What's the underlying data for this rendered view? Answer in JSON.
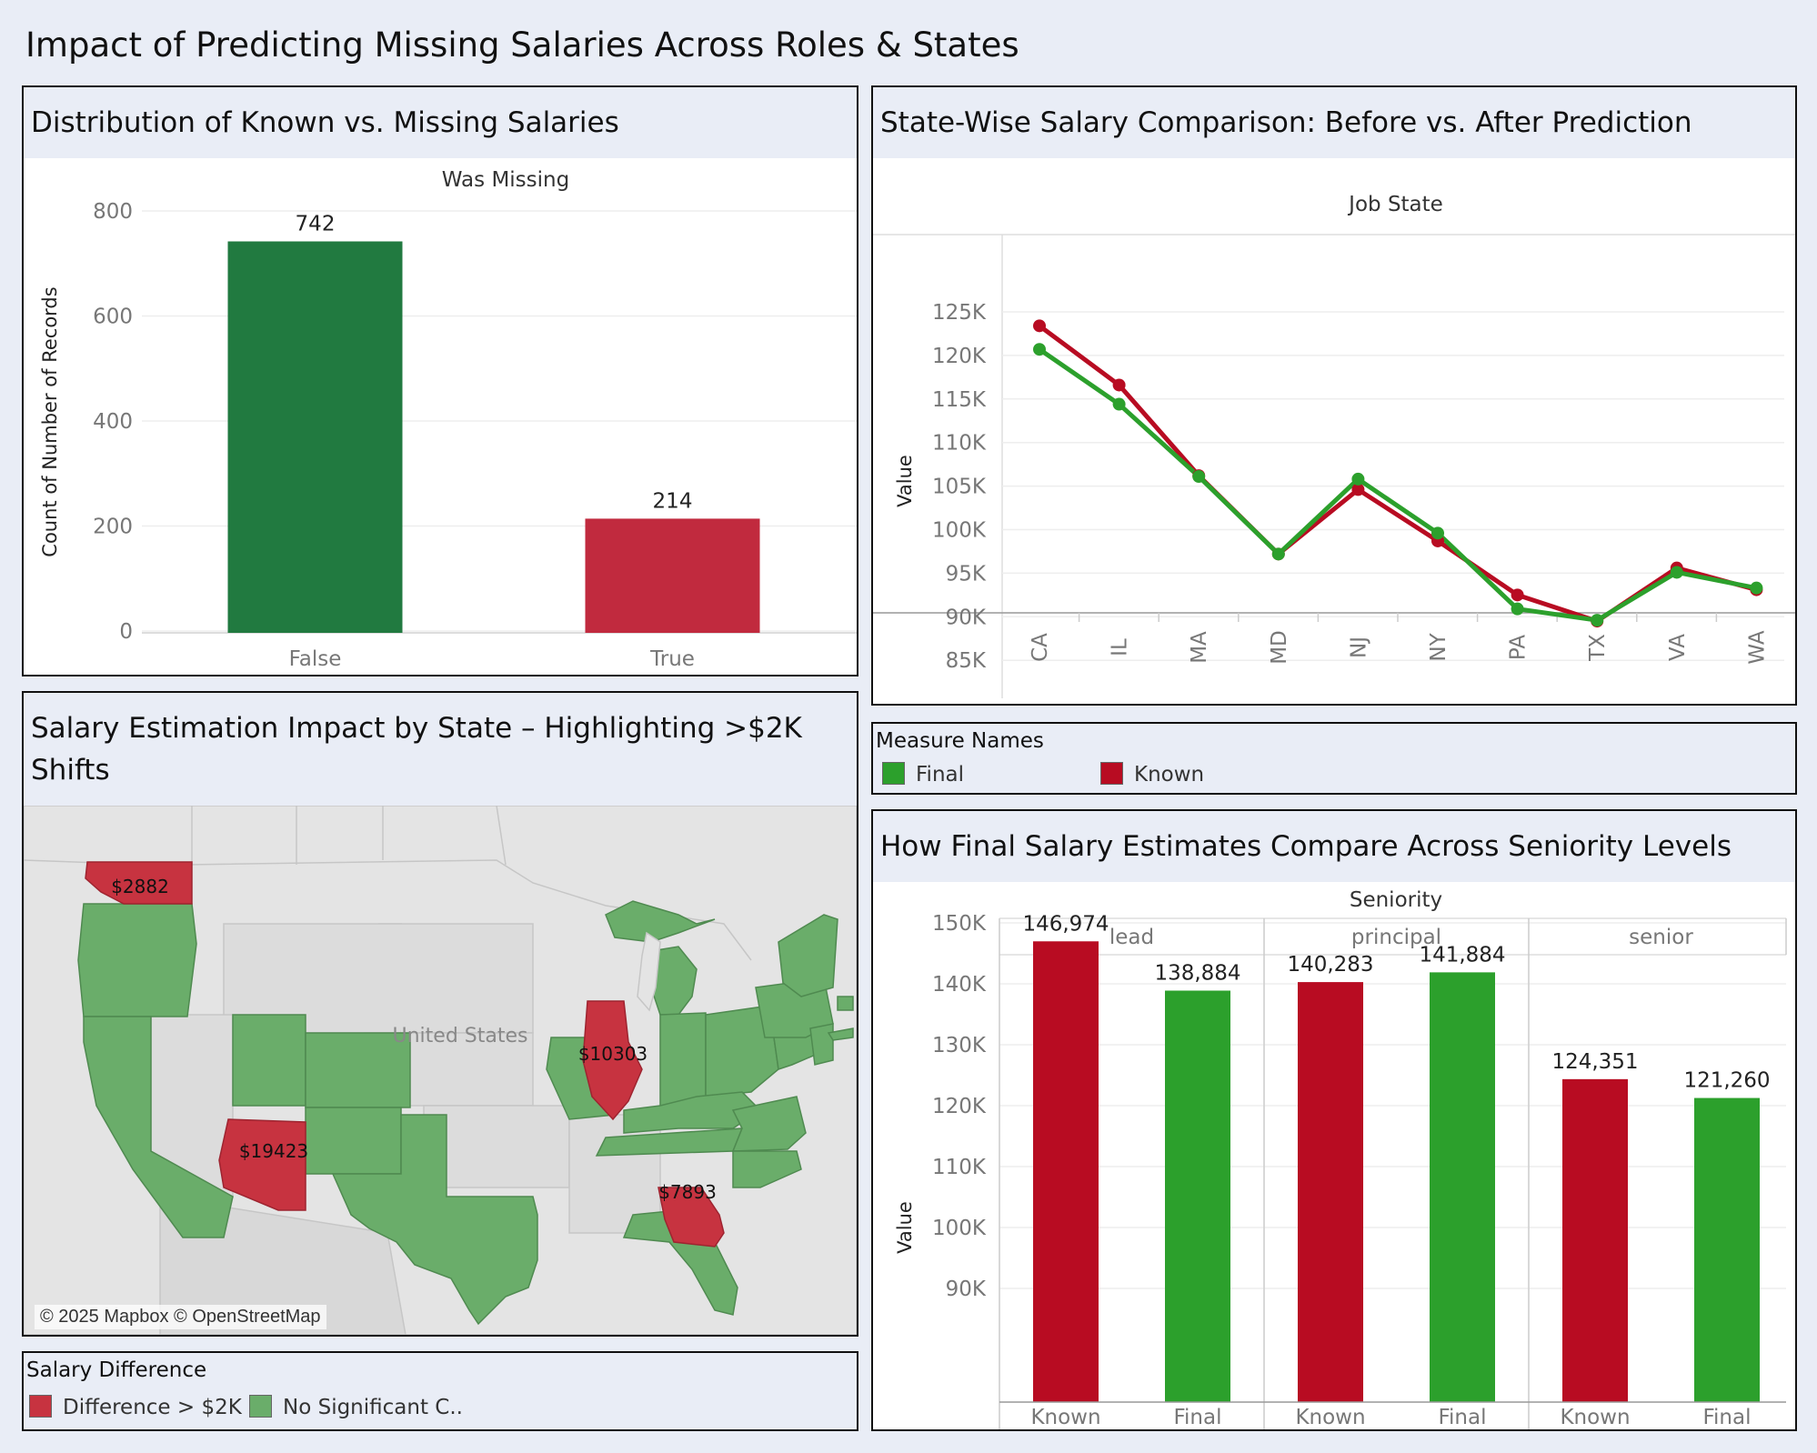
{
  "dashboard": {
    "title": "Impact of Predicting Missing Salaries Across Roles & States"
  },
  "chart_data": [
    {
      "id": "missing-distribution",
      "type": "bar",
      "title": "Distribution of Known vs. Missing Salaries",
      "header": "Was Missing",
      "categories": [
        "False",
        "True"
      ],
      "values": [
        742,
        214
      ],
      "value_labels": [
        "742",
        "214"
      ],
      "colors": [
        "#217a40",
        "#c12a3e"
      ],
      "ylabel": "Count of Number of Records",
      "ylim": [
        0,
        800
      ],
      "yticks": [
        0,
        200,
        400,
        600,
        800
      ],
      "ytick_labels": [
        "0",
        "200",
        "400",
        "600",
        "800"
      ],
      "grid": true
    },
    {
      "id": "state-salary",
      "type": "line",
      "title": "State-Wise Salary Comparison: Before vs. After Prediction",
      "header": "Job State",
      "categories": [
        "CA",
        "IL",
        "MA",
        "MD",
        "NJ",
        "NY",
        "PA",
        "TX",
        "VA",
        "WA"
      ],
      "series": [
        {
          "name": "Known",
          "color": "#b80c22",
          "values": [
            123400,
            116600,
            106200,
            97200,
            104600,
            98700,
            92500,
            89500,
            95600,
            93100
          ]
        },
        {
          "name": "Final",
          "color": "#2ca02c",
          "values": [
            120700,
            114400,
            106100,
            97200,
            105800,
            99600,
            90900,
            89600,
            95100,
            93300
          ]
        }
      ],
      "ylabel": "Value",
      "ylim": [
        80000,
        128000
      ],
      "yticks": [
        85000,
        90000,
        95000,
        100000,
        105000,
        110000,
        115000,
        120000,
        125000
      ],
      "ytick_labels": [
        "85K",
        "90K",
        "95K",
        "100K",
        "105K",
        "110K",
        "115K",
        "120K",
        "125K"
      ],
      "grid": true
    },
    {
      "id": "seniority-salary",
      "type": "bar",
      "title": "How Final Salary Estimates Compare Across Seniority Levels",
      "header": "Seniority",
      "groups": [
        {
          "name": "lead",
          "bars": [
            {
              "label": "Known",
              "value": 146974,
              "value_label": "146,974"
            },
            {
              "label": "Final",
              "value": 138884,
              "value_label": "138,884"
            }
          ]
        },
        {
          "name": "principal",
          "bars": [
            {
              "label": "Known",
              "value": 140283,
              "value_label": "140,283"
            },
            {
              "label": "Final",
              "value": 141884,
              "value_label": "141,884"
            }
          ]
        },
        {
          "name": "senior",
          "bars": [
            {
              "label": "Known",
              "value": 124351,
              "value_label": "124,351"
            },
            {
              "label": "Final",
              "value": 121260,
              "value_label": "121,260"
            }
          ]
        }
      ],
      "colors": {
        "Known": "#b80c22",
        "Final": "#2ca02c"
      },
      "ylabel": "Value",
      "ylim": [
        87000,
        164000
      ],
      "yticks": [
        90000,
        100000,
        110000,
        120000,
        130000,
        140000,
        150000,
        160000
      ],
      "ytick_labels": [
        "90K",
        "100K",
        "110K",
        "120K",
        "130K",
        "140K",
        "150K",
        "160K"
      ],
      "grid": true
    }
  ],
  "measure_legend": {
    "title": "Measure Names",
    "items": [
      {
        "label": "Final",
        "color": "#2ca02c"
      },
      {
        "label": "Known",
        "color": "#b80c22"
      }
    ]
  },
  "map": {
    "title": "Salary Estimation Impact by State – Highlighting >$2K Shifts",
    "country_label": "United States",
    "credit": "© 2025 Mapbox © OpenStreetMap",
    "colors": {
      "highlight": "#c73340",
      "normal": "#6aad6a"
    },
    "highlighted_states": [
      {
        "state": "WA",
        "label": "$2882"
      },
      {
        "state": "IL",
        "label": "$10303"
      },
      {
        "state": "AZ",
        "label": "$19423"
      },
      {
        "state": "GA",
        "label": "$7893"
      }
    ]
  },
  "salary_legend": {
    "title": "Salary Difference",
    "items": [
      {
        "label": "Difference > $2K",
        "color": "#c73340"
      },
      {
        "label": "No Significant C..",
        "color": "#6aad6a"
      }
    ]
  }
}
